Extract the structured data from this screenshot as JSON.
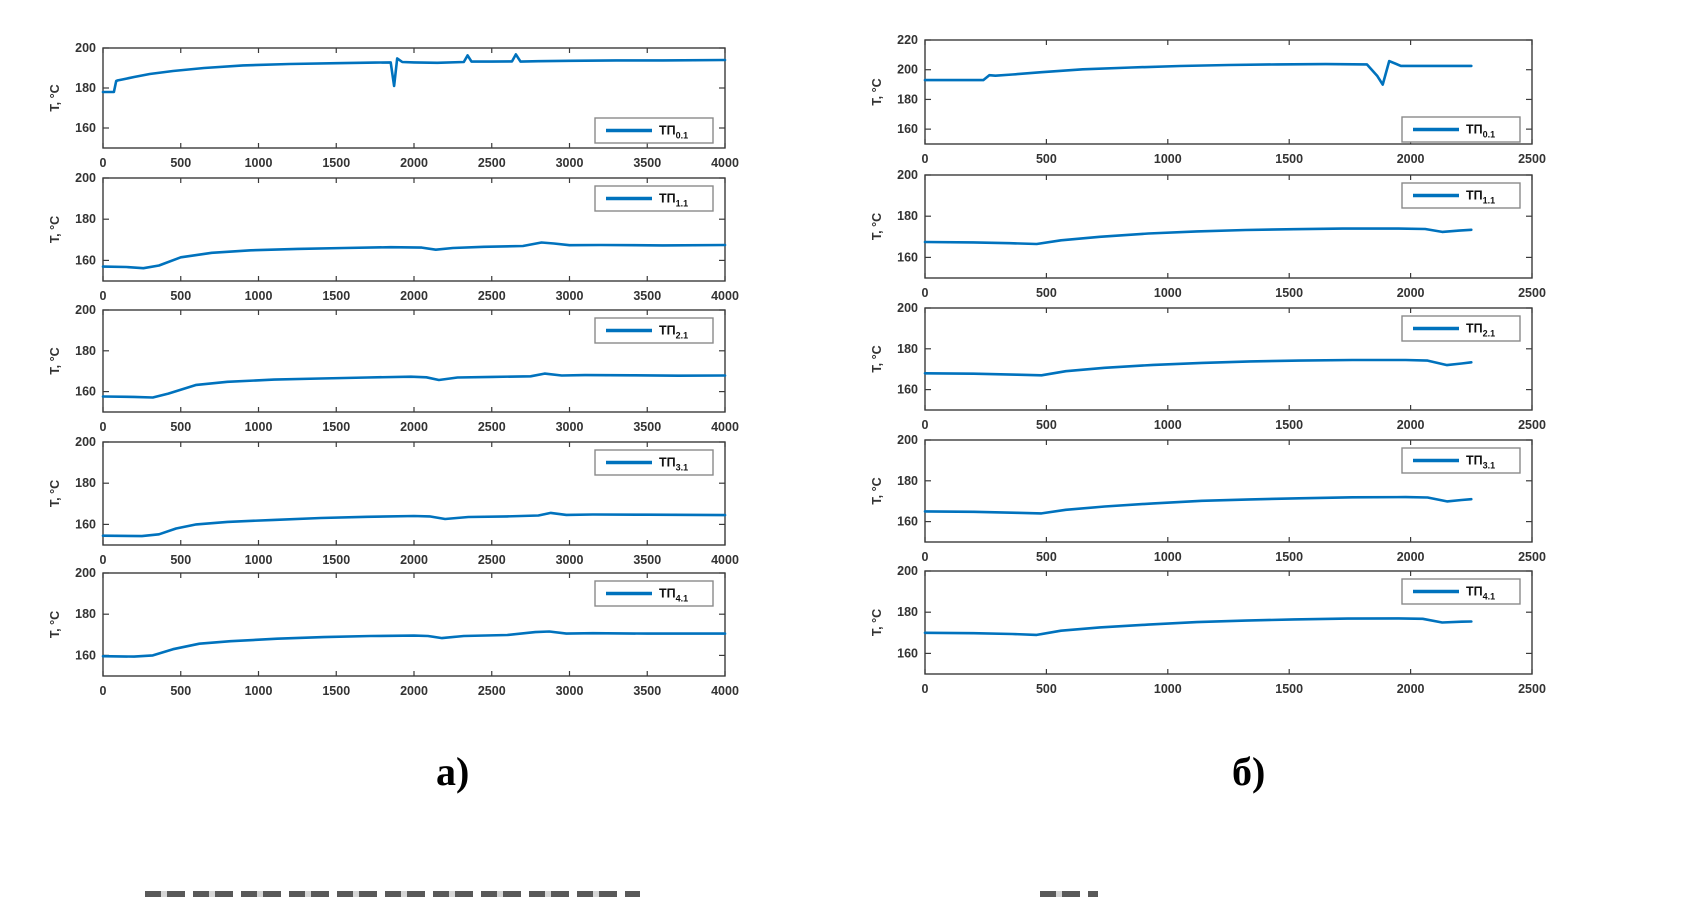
{
  "figure_labels": {
    "a": "а)",
    "b": "б)"
  },
  "ylabel": "T, °C",
  "colors": {
    "line": "#0072BD",
    "axis": "#3b3b3b",
    "tick_label": "#333333",
    "legend_border": "#8a8a8a",
    "legend_fill": "#ffffff",
    "background": "#ffffff"
  },
  "chart_data": [
    {
      "group": "а)",
      "type": "line",
      "xlim": [
        0,
        4000
      ],
      "xticks": [
        0,
        500,
        1000,
        1500,
        2000,
        2500,
        3000,
        3500,
        4000
      ],
      "ylabel": "T, °C",
      "grid": false,
      "legend_position": "inside-right",
      "subplots": [
        {
          "legend": "ТП",
          "legend_sub": "0.1",
          "ylim": [
            150,
            200
          ],
          "yticks": [
            160,
            180,
            200
          ],
          "legend_pos": "bottom-right",
          "x": [
            0,
            70,
            85,
            95,
            120,
            200,
            300,
            450,
            650,
            900,
            1200,
            1500,
            1750,
            1850,
            1872,
            1892,
            1925,
            2000,
            2150,
            2320,
            2345,
            2370,
            2500,
            2630,
            2655,
            2685,
            2800,
            3000,
            3300,
            3600,
            4000
          ],
          "y": [
            178,
            178,
            183.5,
            183.8,
            184.2,
            185.5,
            187,
            188.5,
            190,
            191.3,
            192,
            192.4,
            192.7,
            192.8,
            181,
            194.8,
            193,
            192.8,
            192.6,
            193,
            196.3,
            193.2,
            193.2,
            193.3,
            196.8,
            193.2,
            193.4,
            193.6,
            193.8,
            193.8,
            194
          ]
        },
        {
          "legend": "ТП",
          "legend_sub": "1.1",
          "ylim": [
            150,
            200
          ],
          "yticks": [
            160,
            180,
            200
          ],
          "legend_pos": "top-right",
          "x": [
            0,
            150,
            260,
            360,
            500,
            700,
            950,
            1250,
            1550,
            1850,
            2050,
            2140,
            2250,
            2450,
            2700,
            2820,
            2900,
            3000,
            3200,
            3600,
            4000
          ],
          "y": [
            157,
            156.8,
            156.2,
            157.5,
            161.5,
            163.7,
            164.9,
            165.6,
            166,
            166.4,
            166.2,
            165.2,
            166,
            166.6,
            167,
            168.7,
            168.2,
            167.4,
            167.5,
            167.3,
            167.5
          ]
        },
        {
          "legend": "ТП",
          "legend_sub": "2.1",
          "ylim": [
            150,
            200
          ],
          "yticks": [
            160,
            180,
            200
          ],
          "legend_pos": "top-right",
          "x": [
            0,
            200,
            320,
            420,
            600,
            800,
            1100,
            1400,
            1700,
            1980,
            2080,
            2160,
            2280,
            2500,
            2750,
            2840,
            2950,
            3100,
            3400,
            3700,
            4000
          ],
          "y": [
            157.6,
            157.4,
            157.1,
            159,
            163.3,
            164.8,
            165.9,
            166.4,
            166.9,
            167.3,
            167,
            165.7,
            166.9,
            167.2,
            167.5,
            168.8,
            167.9,
            168.1,
            168,
            167.8,
            167.9
          ]
        },
        {
          "legend": "ТП",
          "legend_sub": "3.1",
          "ylim": [
            150,
            200
          ],
          "yticks": [
            160,
            180,
            200
          ],
          "legend_pos": "top-right",
          "x": [
            0,
            250,
            360,
            470,
            600,
            800,
            1100,
            1400,
            1700,
            2000,
            2100,
            2200,
            2350,
            2600,
            2800,
            2880,
            2980,
            3150,
            3500,
            4000
          ],
          "y": [
            154.5,
            154.3,
            155.2,
            158,
            160,
            161.2,
            162.2,
            163.1,
            163.7,
            164.1,
            163.9,
            162.6,
            163.6,
            163.9,
            164.3,
            165.6,
            164.6,
            164.8,
            164.7,
            164.5
          ]
        },
        {
          "legend": "ТП",
          "legend_sub": "4.1",
          "ylim": [
            150,
            200
          ],
          "yticks": [
            160,
            180,
            200
          ],
          "legend_pos": "top-right",
          "x": [
            0,
            200,
            320,
            450,
            620,
            820,
            1120,
            1420,
            1720,
            2000,
            2090,
            2180,
            2320,
            2600,
            2780,
            2870,
            2980,
            3150,
            3500,
            4000
          ],
          "y": [
            159.6,
            159.4,
            160,
            163,
            165.7,
            166.9,
            168.1,
            168.9,
            169.4,
            169.6,
            169.4,
            168.4,
            169.4,
            169.9,
            171.3,
            171.6,
            170.6,
            170.8,
            170.6,
            170.6
          ]
        }
      ]
    },
    {
      "group": "б)",
      "type": "line",
      "xlim": [
        0,
        2500
      ],
      "xticks": [
        0,
        500,
        1000,
        1500,
        2000,
        2500
      ],
      "ylabel": "T, °C",
      "grid": false,
      "legend_position": "inside-right",
      "subplots": [
        {
          "legend": "ТП",
          "legend_sub": "0.1",
          "ylim": [
            150,
            220
          ],
          "yticks": [
            160,
            180,
            200,
            220
          ],
          "legend_pos": "bottom-right",
          "x": [
            0,
            240,
            265,
            290,
            360,
            480,
            650,
            850,
            1050,
            1250,
            1450,
            1650,
            1820,
            1862,
            1885,
            1912,
            1960,
            2060,
            2250
          ],
          "y": [
            193,
            193,
            196.3,
            196,
            196.8,
            198.3,
            200.3,
            201.5,
            202.5,
            203.2,
            203.6,
            203.8,
            203.6,
            196,
            190,
            205.8,
            202.6,
            202.6,
            202.6
          ]
        },
        {
          "legend": "ТП",
          "legend_sub": "1.1",
          "ylim": [
            150,
            200
          ],
          "yticks": [
            160,
            180,
            200
          ],
          "legend_pos": "top-right",
          "x": [
            0,
            200,
            350,
            460,
            560,
            720,
            920,
            1120,
            1320,
            1520,
            1720,
            1950,
            2060,
            2130,
            2200,
            2250
          ],
          "y": [
            167.5,
            167.3,
            166.9,
            166.5,
            168.3,
            170,
            171.6,
            172.6,
            173.3,
            173.7,
            174,
            174,
            173.8,
            172.4,
            173,
            173.4
          ]
        },
        {
          "legend": "ТП",
          "legend_sub": "2.1",
          "ylim": [
            150,
            200
          ],
          "yticks": [
            160,
            180,
            200
          ],
          "legend_pos": "top-right",
          "x": [
            0,
            200,
            380,
            480,
            580,
            740,
            940,
            1140,
            1340,
            1540,
            1760,
            1980,
            2070,
            2150,
            2210,
            2250
          ],
          "y": [
            168,
            167.8,
            167.3,
            167,
            169,
            170.7,
            172.1,
            173.1,
            173.8,
            174.2,
            174.5,
            174.5,
            174.2,
            172,
            172.8,
            173.4
          ]
        },
        {
          "legend": "ТП",
          "legend_sub": "3.1",
          "ylim": [
            150,
            200
          ],
          "yticks": [
            160,
            180,
            200
          ],
          "legend_pos": "top-right",
          "x": [
            0,
            200,
            380,
            480,
            580,
            740,
            940,
            1140,
            1340,
            1540,
            1760,
            1980,
            2070,
            2150,
            2210,
            2250
          ],
          "y": [
            165,
            164.8,
            164.3,
            164,
            165.8,
            167.4,
            168.9,
            170.2,
            170.9,
            171.4,
            171.9,
            172,
            171.8,
            169.9,
            170.6,
            171
          ]
        },
        {
          "legend": "ТП",
          "legend_sub": "4.1",
          "ylim": [
            150,
            200
          ],
          "yticks": [
            160,
            180,
            200
          ],
          "legend_pos": "top-right",
          "x": [
            0,
            200,
            360,
            460,
            560,
            720,
            920,
            1120,
            1320,
            1520,
            1740,
            1950,
            2050,
            2130,
            2210,
            2250
          ],
          "y": [
            170,
            169.8,
            169.4,
            169,
            171,
            172.6,
            174,
            175.2,
            175.9,
            176.5,
            176.9,
            177,
            176.8,
            175,
            175.4,
            175.5
          ]
        }
      ]
    }
  ]
}
